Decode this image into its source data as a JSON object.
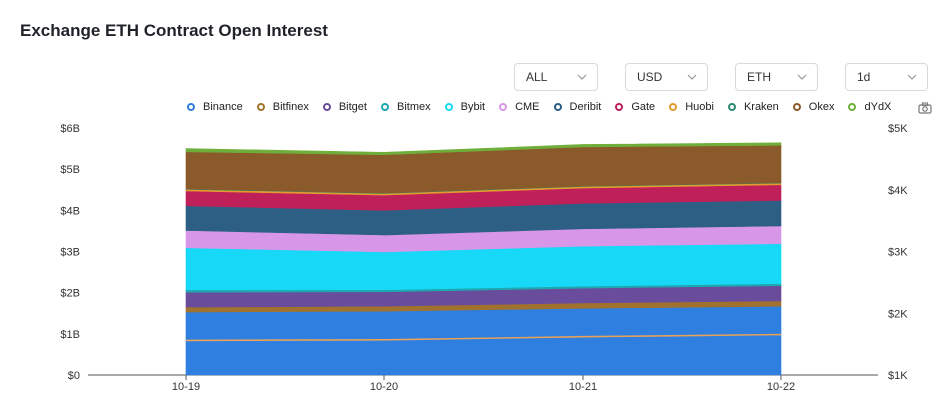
{
  "title": "Exchange ETH Contract Open Interest",
  "filters": [
    {
      "value": "ALL"
    },
    {
      "value": "USD"
    },
    {
      "value": "ETH"
    },
    {
      "value": "1d"
    }
  ],
  "icons": {
    "dropdown": "chevron-down-icon",
    "camera": "camera-icon"
  },
  "chart_data": {
    "type": "area",
    "stacked": true,
    "title": "Exchange ETH Contract Open Interest",
    "categories": [
      "10-19",
      "10-20",
      "10-21",
      "10-22"
    ],
    "y_left": {
      "ticks": [
        "$0",
        "$1B",
        "$2B",
        "$3B",
        "$4B",
        "$5B",
        "$6B"
      ],
      "range": [
        0,
        6
      ]
    },
    "y_right": {
      "ticks": [
        "$1K",
        "$2K",
        "$3K",
        "$4K",
        "$5K"
      ],
      "range": [
        1000,
        5000
      ]
    },
    "legend_position": "top",
    "grid": false,
    "series": [
      {
        "name": "Binance",
        "color": "#2e7fe0",
        "values": [
          1.53,
          1.55,
          1.62,
          1.67
        ]
      },
      {
        "name": "Bitfinex",
        "color": "#a0722e",
        "values": [
          0.12,
          0.12,
          0.13,
          0.13
        ]
      },
      {
        "name": "Bitget",
        "color": "#6a4c9c",
        "values": [
          0.36,
          0.35,
          0.36,
          0.37
        ]
      },
      {
        "name": "Bitmex",
        "color": "#1fa7b0",
        "values": [
          0.06,
          0.05,
          0.05,
          0.05
        ]
      },
      {
        "name": "Bybit",
        "color": "#17d9f7",
        "values": [
          1.02,
          0.92,
          0.97,
          0.97
        ]
      },
      {
        "name": "CME",
        "color": "#d896e8",
        "values": [
          0.42,
          0.41,
          0.42,
          0.43
        ]
      },
      {
        "name": "Deribit",
        "color": "#2d5f85",
        "values": [
          0.6,
          0.6,
          0.62,
          0.62
        ]
      },
      {
        "name": "Gate",
        "color": "#c0205a",
        "values": [
          0.36,
          0.37,
          0.37,
          0.38
        ]
      },
      {
        "name": "Huobi",
        "color": "#e59a2f",
        "values": [
          0.04,
          0.04,
          0.04,
          0.04
        ]
      },
      {
        "name": "Kraken",
        "color": "#2d8a6e",
        "values": [
          0.01,
          0.01,
          0.01,
          0.01
        ]
      },
      {
        "name": "Okex",
        "color": "#8b5a2b",
        "values": [
          0.9,
          0.93,
          0.95,
          0.91
        ]
      },
      {
        "name": "dYdX",
        "color": "#6fae3a",
        "values": [
          0.08,
          0.06,
          0.06,
          0.06
        ]
      }
    ],
    "price_line": {
      "color": "#e6a15a",
      "values": [
        1560,
        1570,
        1620,
        1655
      ]
    }
  }
}
